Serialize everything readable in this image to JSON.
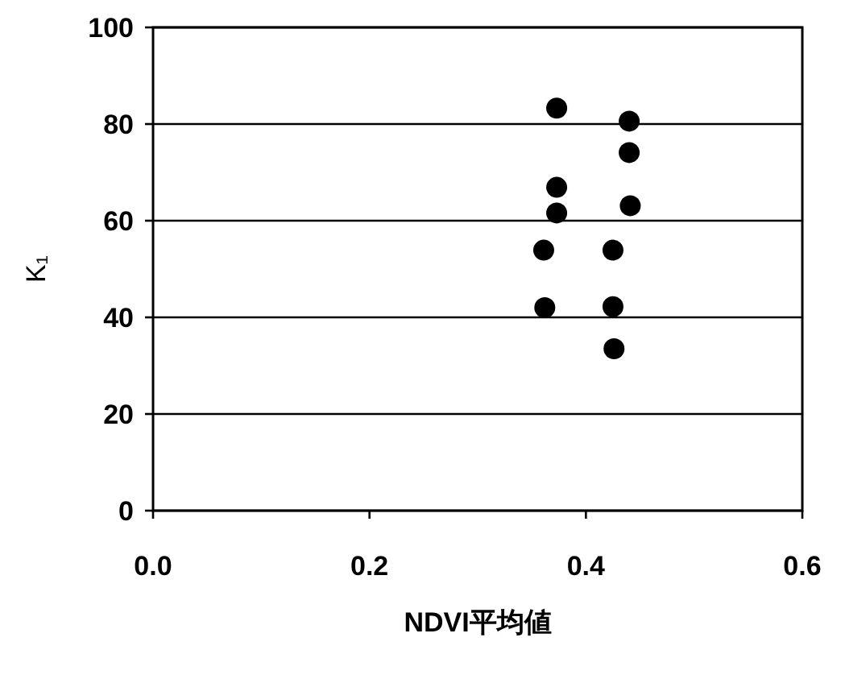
{
  "chart_data": {
    "type": "scatter",
    "xlabel": "NDVI平均値",
    "ylabel": "K₁",
    "x": [
      0.373,
      0.44,
      0.44,
      0.373,
      0.373,
      0.441,
      0.361,
      0.425,
      0.362,
      0.425,
      0.426
    ],
    "values": [
      83.3,
      80.6,
      74.1,
      66.9,
      61.6,
      63.1,
      53.9,
      53.9,
      42.0,
      42.2,
      33.5
    ],
    "color": "#000000",
    "marker": "circle",
    "xlim": [
      0,
      0.6
    ],
    "ylim": [
      0,
      100
    ],
    "xticks": [
      {
        "value": 0,
        "label": "0.0"
      },
      {
        "value": 0.2,
        "label": "0.2"
      },
      {
        "value": 0.4,
        "label": "0.4"
      },
      {
        "value": 0.6,
        "label": "0.6"
      }
    ],
    "yticks": [
      0,
      20,
      40,
      60,
      80,
      100
    ],
    "grid": "y"
  }
}
